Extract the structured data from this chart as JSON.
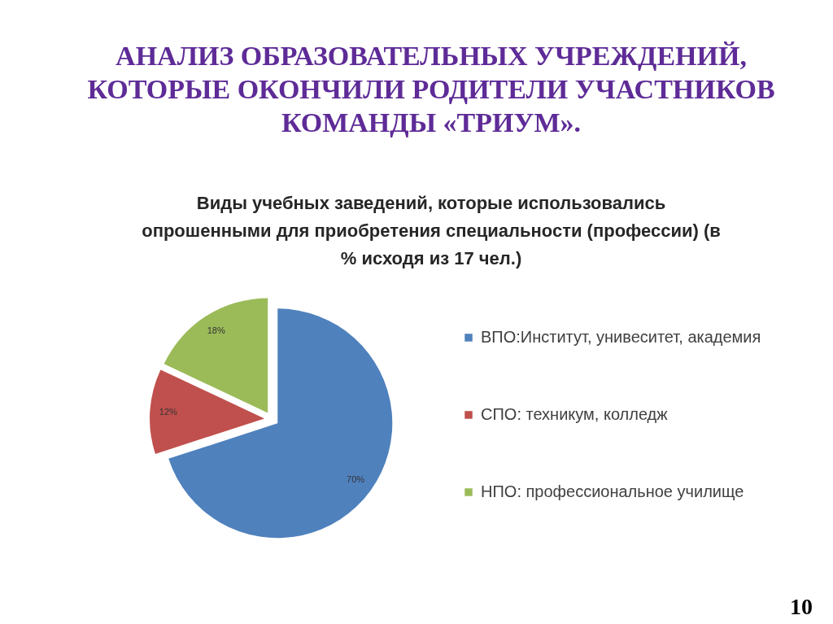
{
  "chart_data": {
    "type": "pie",
    "title": "АНАЛИЗ ОБРАЗОВАТЕЛЬНЫХ УЧРЕЖДЕНИЙ, КОТОРЫЕ ОКОНЧИЛИ РОДИТЕЛИ УЧАСТНИКОВ КОМАНДЫ «ТРИУМ».",
    "subtitle": "Виды учебных заведений, которые использовались опрошенными для приобретения специальности (профессии) (в % исходя из 17 чел.)",
    "categories": [
      "ВПО:Институт, унивеситет, академия",
      "СПО: техникум, колледж",
      "НПО: профессиональное училище"
    ],
    "values": [
      70,
      12,
      18
    ],
    "colors": [
      "#4f81bd",
      "#c0504d",
      "#9bbb59"
    ],
    "value_labels": [
      "70%",
      "12%",
      "18%"
    ],
    "legend": "right",
    "annotations": [
      "10"
    ]
  }
}
